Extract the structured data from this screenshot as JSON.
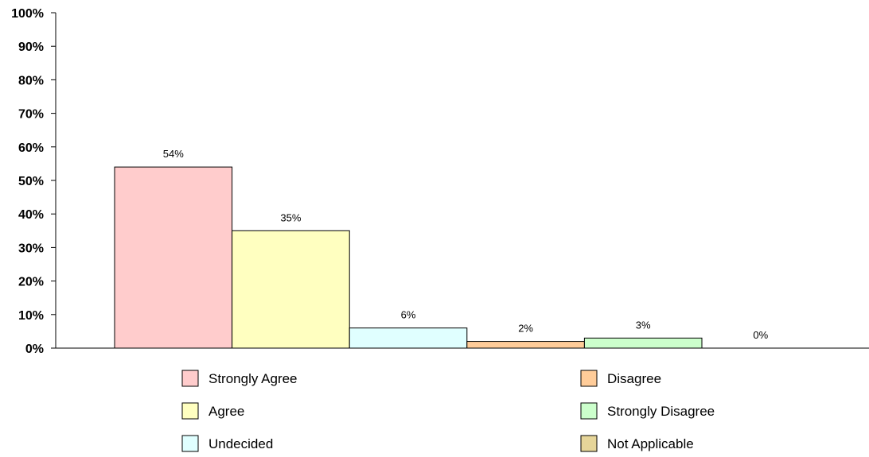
{
  "chart_data": {
    "type": "bar",
    "categories": [
      "Strongly Agree",
      "Agree",
      "Undecided",
      "Disagree",
      "Strongly Disagree",
      "Not Applicable"
    ],
    "values": [
      54,
      35,
      6,
      2,
      3,
      0
    ],
    "value_labels": [
      "54%",
      "35%",
      "6%",
      "2%",
      "3%",
      "0%"
    ],
    "colors": [
      "#ffcccc",
      "#ffffc0",
      "#e0ffff",
      "#ffcc99",
      "#ccffcc",
      "#e6d599"
    ],
    "ylim": [
      0,
      100
    ],
    "yticks": [
      0,
      10,
      20,
      30,
      40,
      50,
      60,
      70,
      80,
      90,
      100
    ],
    "ytick_labels": [
      "0%",
      "10%",
      "20%",
      "30%",
      "40%",
      "50%",
      "60%",
      "70%",
      "80%",
      "90%",
      "100%"
    ],
    "legend": {
      "placement": "bottom",
      "entries": [
        "Strongly Agree",
        "Agree",
        "Undecided",
        "Disagree",
        "Strongly Disagree",
        "Not Applicable"
      ]
    },
    "grid": false
  }
}
